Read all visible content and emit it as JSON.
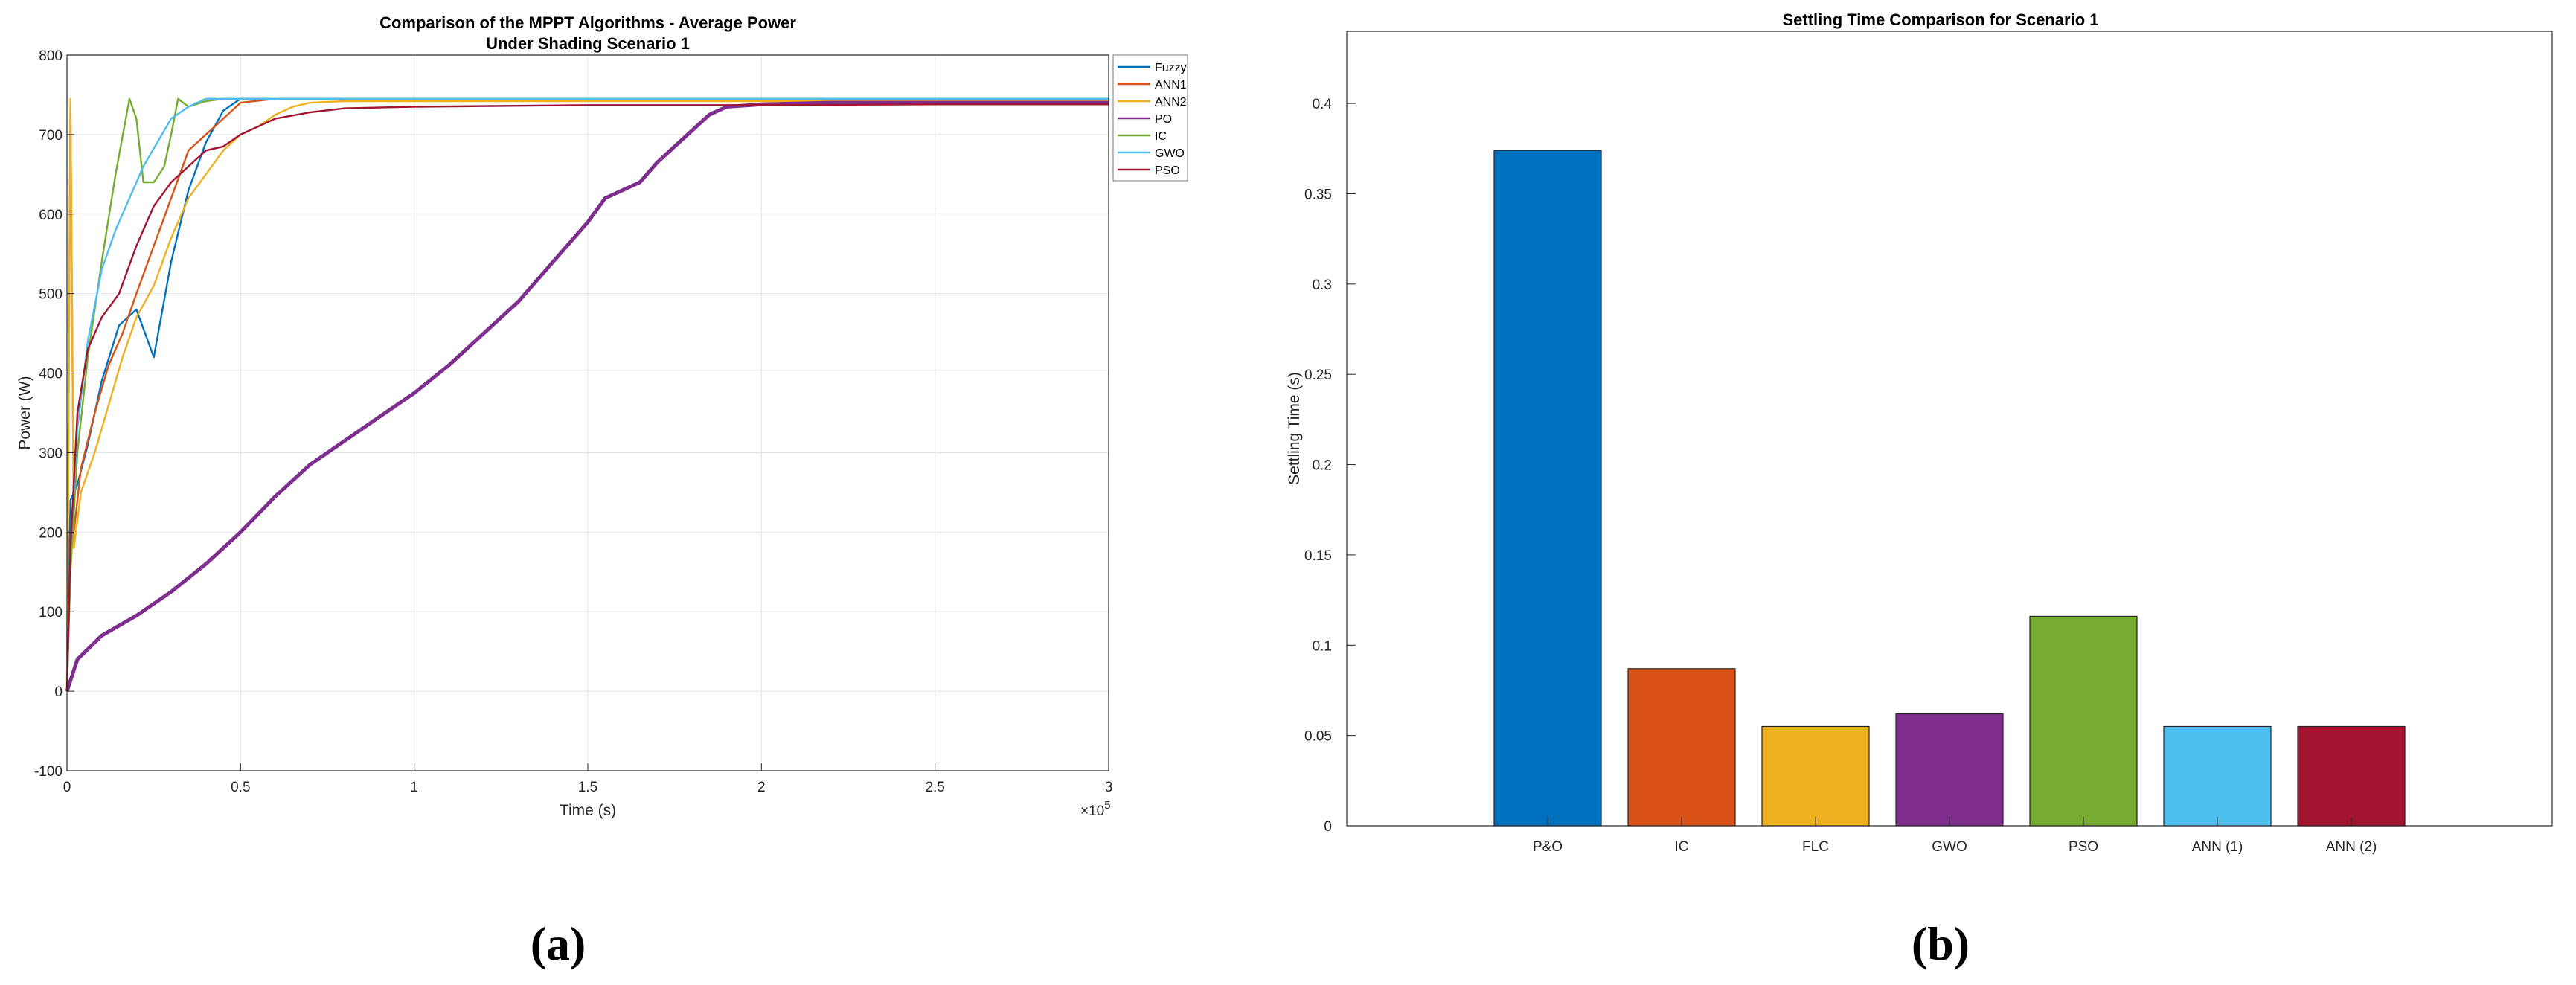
{
  "chart_data": [
    {
      "type": "line",
      "title": "Comparison of the MPPT Algorithms - Average Power",
      "subtitle": "Under Shading Scenario 1",
      "xlabel": "Time (s)",
      "ylabel": "Power (W)",
      "x_exponent_label": "×10",
      "x_exponent": "5",
      "xlim": [
        0,
        3
      ],
      "ylim": [
        -100,
        800
      ],
      "x_ticks": [
        "0",
        "0.5",
        "1",
        "1.5",
        "2",
        "2.5",
        "3"
      ],
      "y_ticks": [
        "-100",
        "0",
        "100",
        "200",
        "300",
        "400",
        "500",
        "600",
        "700",
        "800"
      ],
      "grid": true,
      "legend_position": "top-right",
      "series": [
        {
          "name": "Fuzzy",
          "color": "#0072BD",
          "x": [
            0,
            0.01,
            0.03,
            0.06,
            0.1,
            0.15,
            0.2,
            0.25,
            0.3,
            0.35,
            0.4,
            0.45,
            0.5,
            0.6,
            0.8,
            1.0,
            1.5,
            2.0,
            2.5,
            3.0
          ],
          "y": [
            0,
            240,
            260,
            310,
            390,
            460,
            480,
            420,
            540,
            630,
            690,
            730,
            745,
            745,
            745,
            745,
            745,
            745,
            745,
            745
          ]
        },
        {
          "name": "ANN1",
          "color": "#D95319",
          "x": [
            0,
            0.01,
            0.02,
            0.04,
            0.08,
            0.12,
            0.16,
            0.2,
            0.25,
            0.3,
            0.35,
            0.4,
            0.45,
            0.5,
            0.6,
            0.8,
            1.0,
            1.5,
            2.0,
            2.5,
            3.0
          ],
          "y": [
            0,
            740,
            200,
            280,
            350,
            410,
            450,
            500,
            560,
            620,
            680,
            700,
            720,
            740,
            745,
            745,
            745,
            745,
            745,
            745,
            745
          ]
        },
        {
          "name": "ANN2",
          "color": "#EDB120",
          "x": [
            0,
            0.01,
            0.02,
            0.04,
            0.08,
            0.12,
            0.16,
            0.2,
            0.25,
            0.3,
            0.35,
            0.4,
            0.45,
            0.5,
            0.55,
            0.6,
            0.65,
            0.7,
            0.8,
            1.0,
            1.5,
            2.0,
            2.5,
            3.0
          ],
          "y": [
            0,
            745,
            180,
            250,
            300,
            360,
            420,
            470,
            510,
            570,
            620,
            650,
            680,
            700,
            710,
            725,
            735,
            740,
            742,
            742,
            742,
            742,
            742,
            742
          ]
        },
        {
          "name": "PO",
          "color": "#7E2F8E",
          "x": [
            0,
            0.03,
            0.1,
            0.2,
            0.3,
            0.4,
            0.5,
            0.6,
            0.7,
            0.8,
            0.9,
            1.0,
            1.1,
            1.2,
            1.3,
            1.4,
            1.5,
            1.55,
            1.6,
            1.65,
            1.7,
            1.8,
            1.85,
            1.9,
            2.0,
            2.2,
            2.5,
            3.0
          ],
          "y": [
            0,
            40,
            70,
            95,
            125,
            160,
            200,
            245,
            285,
            315,
            345,
            375,
            410,
            450,
            490,
            540,
            590,
            620,
            630,
            640,
            665,
            705,
            725,
            735,
            738,
            740,
            740,
            740
          ]
        },
        {
          "name": "IC",
          "color": "#77AC30",
          "x": [
            0,
            0.01,
            0.03,
            0.06,
            0.1,
            0.14,
            0.18,
            0.2,
            0.22,
            0.25,
            0.28,
            0.3,
            0.32,
            0.35,
            0.4,
            0.45,
            0.5,
            0.6,
            0.8,
            1.0,
            1.5,
            2.0,
            2.5,
            3.0
          ],
          "y": [
            0,
            150,
            300,
            420,
            540,
            650,
            745,
            720,
            640,
            640,
            660,
            700,
            745,
            735,
            742,
            745,
            745,
            745,
            745,
            745,
            745,
            745,
            745,
            745
          ]
        },
        {
          "name": "GWO",
          "color": "#4DBEEE",
          "x": [
            0,
            0.01,
            0.03,
            0.06,
            0.1,
            0.14,
            0.18,
            0.22,
            0.26,
            0.3,
            0.35,
            0.4,
            0.45,
            0.5,
            0.6,
            0.8,
            1.0,
            1.5,
            2.0,
            2.5,
            3.0
          ],
          "y": [
            0,
            180,
            330,
            440,
            530,
            580,
            620,
            660,
            690,
            720,
            735,
            745,
            745,
            745,
            745,
            745,
            745,
            745,
            745,
            745,
            745
          ]
        },
        {
          "name": "PSO",
          "color": "#A2142F",
          "x": [
            0,
            0.01,
            0.03,
            0.06,
            0.1,
            0.15,
            0.2,
            0.25,
            0.3,
            0.35,
            0.4,
            0.45,
            0.5,
            0.55,
            0.6,
            0.7,
            0.8,
            1.0,
            1.5,
            2.0,
            2.5,
            3.0
          ],
          "y": [
            0,
            180,
            350,
            430,
            470,
            500,
            560,
            610,
            640,
            660,
            680,
            685,
            700,
            710,
            720,
            728,
            733,
            735,
            737,
            737,
            738,
            738
          ]
        }
      ],
      "panel_label": "(a)"
    },
    {
      "type": "bar",
      "title": "Settling Time Comparison for Scenario 1",
      "xlabel": "",
      "ylabel": "Settling Time (s)",
      "ylim": [
        0,
        0.44
      ],
      "y_ticks": [
        "0",
        "0.05",
        "0.1",
        "0.15",
        "0.2",
        "0.25",
        "0.3",
        "0.35",
        "0.4"
      ],
      "grid": false,
      "categories": [
        "P&O",
        "IC",
        "FLC",
        "GWO",
        "PSO",
        "ANN (1)",
        "ANN (2)"
      ],
      "values": [
        0.374,
        0.087,
        0.055,
        0.062,
        0.116,
        0.055,
        0.055
      ],
      "colors": [
        "#0072BD",
        "#D95319",
        "#EDB120",
        "#7E2F8E",
        "#77AC30",
        "#4DBEEE",
        "#A2142F"
      ],
      "panel_label": "(b)"
    }
  ]
}
